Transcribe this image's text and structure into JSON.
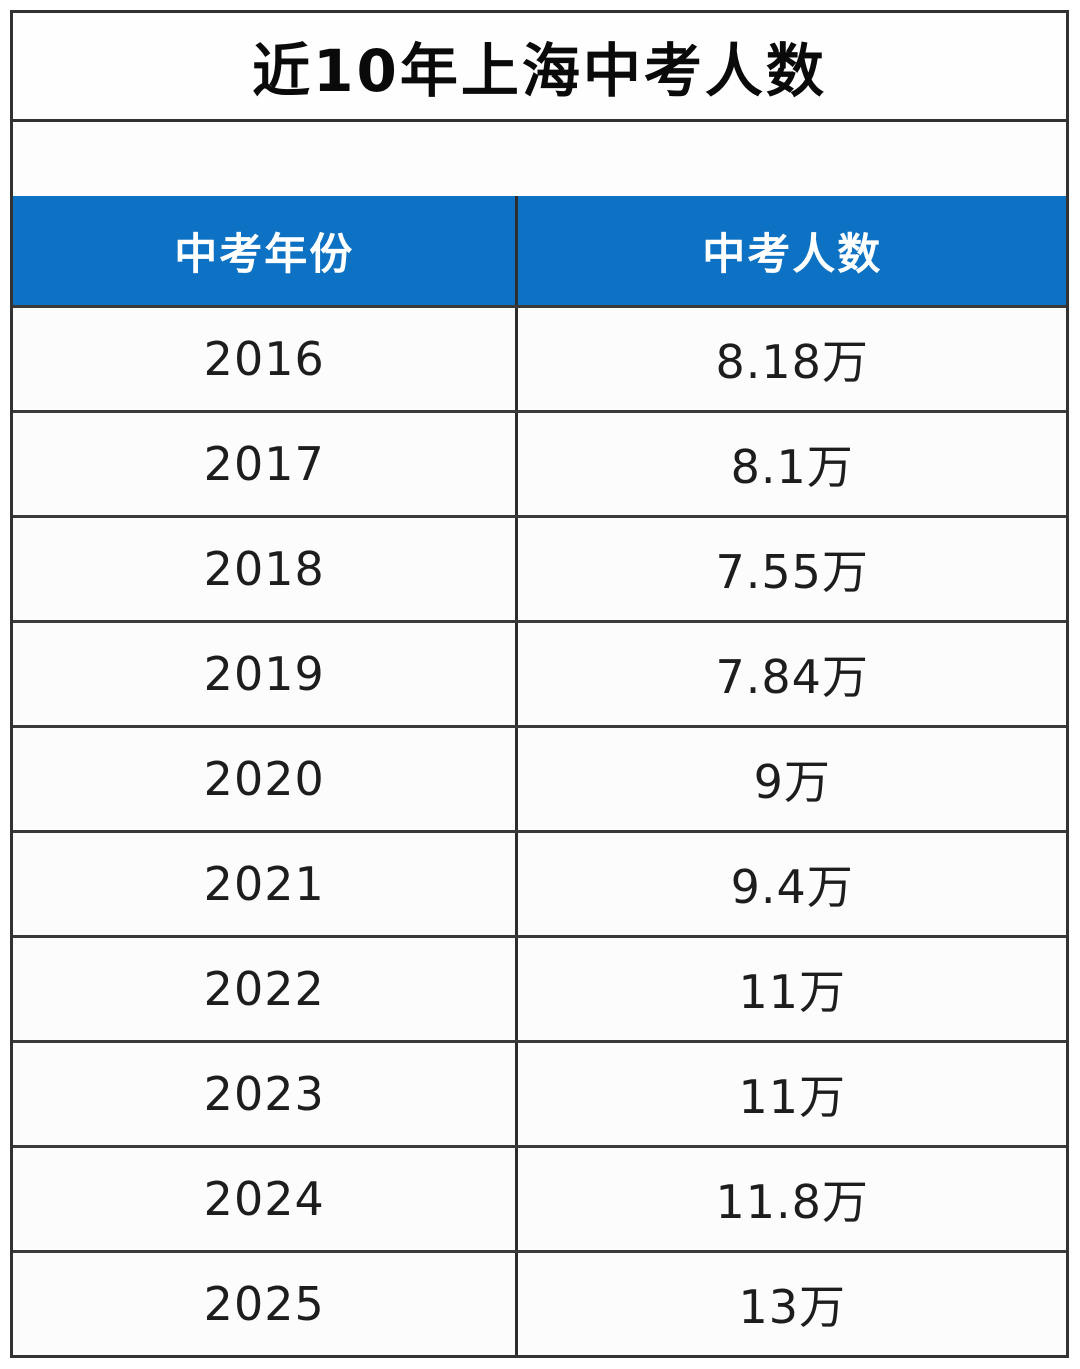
{
  "page": {
    "title": "近10年上海中考人数"
  },
  "table": {
    "headers": [
      {
        "key": "year",
        "label": "中考年份"
      },
      {
        "key": "count",
        "label": "中考人数"
      }
    ],
    "rows": [
      {
        "year": "2016",
        "count": "8.18万"
      },
      {
        "year": "2017",
        "count": "8.1万"
      },
      {
        "year": "2018",
        "count": "7.55万"
      },
      {
        "year": "2019",
        "count": "7.84万"
      },
      {
        "year": "2020",
        "count": "9万"
      },
      {
        "year": "2021",
        "count": "9.4万"
      },
      {
        "year": "2022",
        "count": "11万"
      },
      {
        "year": "2023",
        "count": "11万"
      },
      {
        "year": "2024",
        "count": "11.8万"
      },
      {
        "year": "2025",
        "count": "13万"
      }
    ]
  },
  "chart_data": {
    "type": "table",
    "title": "近10年上海中考人数",
    "columns": [
      "中考年份",
      "中考人数"
    ],
    "rows": [
      [
        "2016",
        "8.18万"
      ],
      [
        "2017",
        "8.1万"
      ],
      [
        "2018",
        "7.55万"
      ],
      [
        "2019",
        "7.84万"
      ],
      [
        "2020",
        "9万"
      ],
      [
        "2021",
        "9.4万"
      ],
      [
        "2022",
        "11万"
      ],
      [
        "2023",
        "11万"
      ],
      [
        "2024",
        "11.8万"
      ],
      [
        "2025",
        "13万"
      ]
    ],
    "values_in_wan": {
      "2016": 8.18,
      "2017": 8.1,
      "2018": 7.55,
      "2019": 7.84,
      "2020": 9,
      "2021": 9.4,
      "2022": 11,
      "2023": 11,
      "2024": 11.8,
      "2025": 13
    }
  },
  "colors": {
    "header_bg": "#0e72c4",
    "header_text": "#ffffff",
    "border": "#3a3a3a",
    "cell_text": "#1d1d1d",
    "title_text": "#0a0a0a",
    "background": "#ffffff"
  }
}
